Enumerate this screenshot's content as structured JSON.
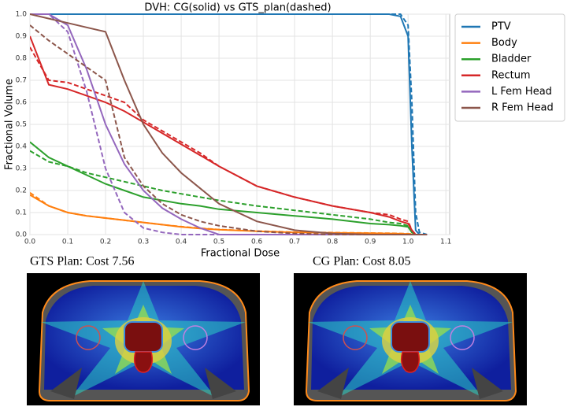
{
  "chart_data": {
    "type": "line",
    "title": "DVH: CG(solid) vs GTS_plan(dashed)",
    "x_label": "Fractional Dose",
    "y_label": "Fractional Volume",
    "xlim": [
      0,
      1.11
    ],
    "ylim": [
      0,
      1
    ],
    "xticks": [
      {
        "value": 0,
        "label": "0.0"
      },
      0.1,
      0.2,
      0.3,
      0.4,
      0.5,
      0.6,
      0.7,
      0.8,
      0.9,
      {
        "value": 1,
        "label": "1.0"
      },
      1.1
    ],
    "yticks": [
      {
        "value": 0,
        "label": "0.0"
      },
      0.1,
      0.2,
      0.3,
      0.4,
      0.5,
      0.6,
      0.7,
      0.8,
      0.9,
      {
        "value": 1,
        "label": "1.0"
      }
    ],
    "grid": true,
    "legend": "outside right",
    "x": [
      0,
      0.05,
      0.1,
      0.15,
      0.2,
      0.25,
      0.3,
      0.35,
      0.4,
      0.45,
      0.5,
      0.6,
      0.7,
      0.8,
      0.9,
      0.95,
      0.98,
      1.0,
      1.01,
      1.02,
      1.03,
      1.05
    ],
    "series": [
      {
        "name": "PTV",
        "color": "#1f77b4",
        "values": [
          1,
          1,
          1,
          1,
          1,
          1,
          1,
          1,
          1,
          1,
          1,
          1,
          1,
          1,
          1,
          1,
          0.99,
          0.9,
          0.4,
          0.02,
          0,
          0
        ],
        "dashed_values": [
          1,
          1,
          1,
          1,
          1,
          1,
          1,
          1,
          1,
          1,
          1,
          1,
          1,
          1,
          1,
          1,
          1,
          0.95,
          0.6,
          0.1,
          0.01,
          0
        ]
      },
      {
        "name": "Body",
        "color": "#ff7f0e",
        "values": [
          0.18,
          0.13,
          0.1,
          0.085,
          0.075,
          0.065,
          0.055,
          0.045,
          0.035,
          0.028,
          0.022,
          0.015,
          0.01,
          0.008,
          0.006,
          0.005,
          0.004,
          0.003,
          0.001,
          0,
          0,
          0
        ],
        "dashed_values": [
          0.19,
          0.13,
          0.1,
          0.085,
          0.075,
          0.065,
          0.055,
          0.045,
          0.036,
          0.029,
          0.023,
          0.016,
          0.011,
          0.009,
          0.007,
          0.006,
          0.005,
          0.004,
          0.002,
          0,
          0,
          0
        ]
      },
      {
        "name": "Bladder",
        "color": "#2ca02c",
        "values": [
          0.42,
          0.35,
          0.31,
          0.27,
          0.23,
          0.2,
          0.17,
          0.155,
          0.14,
          0.13,
          0.115,
          0.1,
          0.085,
          0.07,
          0.05,
          0.045,
          0.04,
          0.035,
          0.01,
          0,
          0,
          0
        ],
        "dashed_values": [
          0.38,
          0.33,
          0.31,
          0.28,
          0.26,
          0.24,
          0.22,
          0.2,
          0.185,
          0.17,
          0.155,
          0.13,
          0.11,
          0.09,
          0.07,
          0.055,
          0.05,
          0.04,
          0.01,
          0,
          0,
          0
        ]
      },
      {
        "name": "Rectum",
        "color": "#d62728",
        "values": [
          0.9,
          0.68,
          0.66,
          0.63,
          0.6,
          0.56,
          0.51,
          0.46,
          0.41,
          0.36,
          0.31,
          0.22,
          0.17,
          0.13,
          0.1,
          0.08,
          0.06,
          0.05,
          0.02,
          0,
          0,
          0
        ],
        "dashed_values": [
          0.85,
          0.7,
          0.69,
          0.66,
          0.63,
          0.6,
          0.52,
          0.47,
          0.42,
          0.37,
          0.31,
          0.22,
          0.17,
          0.13,
          0.1,
          0.09,
          0.07,
          0.06,
          0.02,
          0,
          0,
          0
        ]
      },
      {
        "name": "L Fem Head",
        "color": "#9467bd",
        "values": [
          1,
          1,
          0.95,
          0.75,
          0.5,
          0.32,
          0.2,
          0.12,
          0.07,
          0.03,
          0,
          0,
          0,
          0,
          0,
          0,
          0,
          0,
          0,
          0,
          0,
          0
        ],
        "dashed_values": [
          1,
          1,
          0.92,
          0.65,
          0.3,
          0.1,
          0.03,
          0.01,
          0,
          0,
          0,
          0,
          0,
          0,
          0,
          0,
          0,
          0,
          0,
          0,
          0,
          0
        ]
      },
      {
        "name": "R Fem Head",
        "color": "#8c564b",
        "values": [
          1,
          0.98,
          0.96,
          0.94,
          0.92,
          0.7,
          0.5,
          0.37,
          0.28,
          0.21,
          0.14,
          0.06,
          0.02,
          0.005,
          0,
          0,
          0,
          0,
          0,
          0,
          0,
          0
        ],
        "dashed_values": [
          0.95,
          0.88,
          0.82,
          0.76,
          0.7,
          0.35,
          0.22,
          0.14,
          0.09,
          0.06,
          0.04,
          0.015,
          0.005,
          0,
          0,
          0,
          0,
          0,
          0,
          0,
          0,
          0
        ]
      }
    ]
  },
  "images": [
    {
      "caption": "GTS Plan: Cost 7.56"
    },
    {
      "caption": "CG Plan: Cost 8.05"
    }
  ]
}
